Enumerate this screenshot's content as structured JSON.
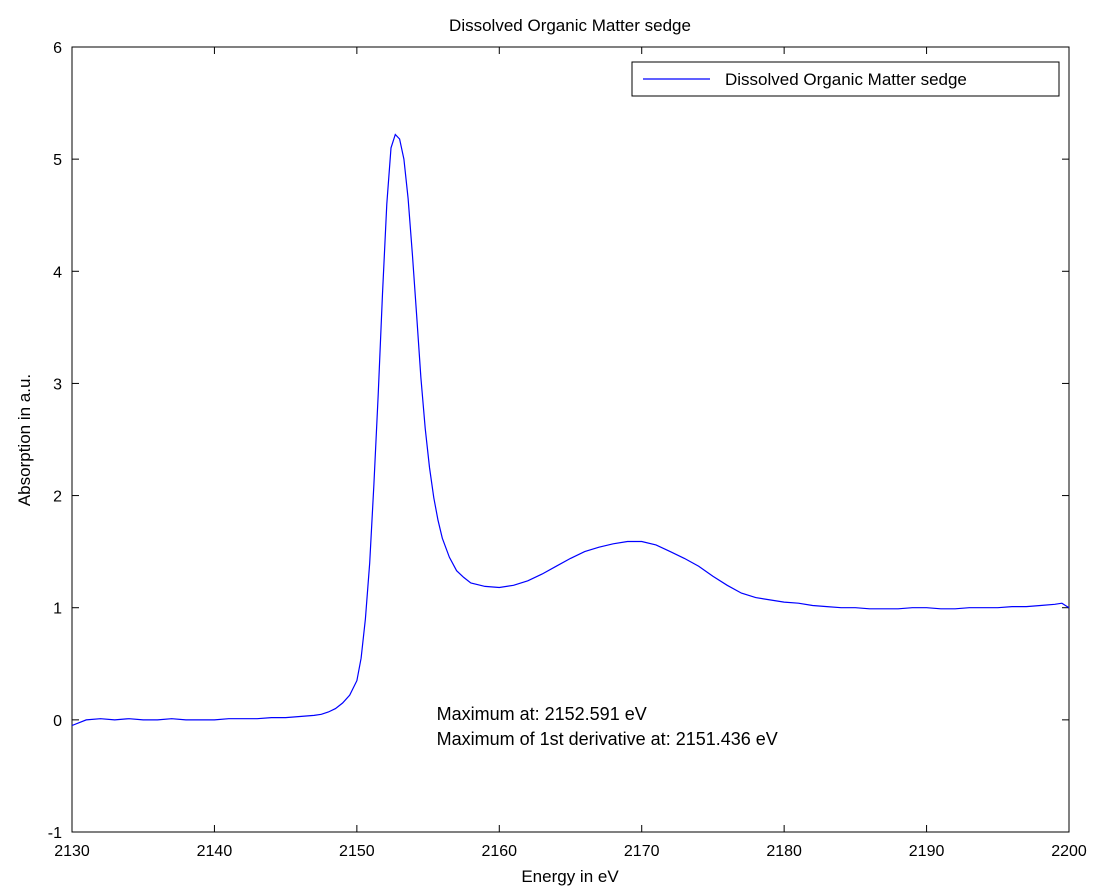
{
  "chart_data": {
    "type": "line",
    "title": "Dissolved Organic Matter sedge",
    "xlabel": "Energy in eV",
    "ylabel": "Absorption in a.u.",
    "xlim": [
      2130,
      2200
    ],
    "ylim": [
      -1,
      6
    ],
    "xticks": [
      2130,
      2140,
      2150,
      2160,
      2170,
      2180,
      2190,
      2200
    ],
    "yticks": [
      -1,
      0,
      1,
      2,
      3,
      4,
      5,
      6
    ],
    "grid": false,
    "legend_position": "top-right",
    "series": [
      {
        "name": "Dissolved Organic Matter sedge",
        "color": "#0000ff",
        "x": [
          2130,
          2131,
          2132,
          2133,
          2134,
          2135,
          2136,
          2137,
          2138,
          2139,
          2140,
          2141,
          2142,
          2143,
          2144,
          2145,
          2146,
          2147,
          2147.5,
          2148,
          2148.5,
          2149,
          2149.5,
          2150,
          2150.3,
          2150.6,
          2150.9,
          2151.2,
          2151.5,
          2151.8,
          2152.1,
          2152.4,
          2152.7,
          2153,
          2153.3,
          2153.6,
          2153.9,
          2154.2,
          2154.5,
          2154.8,
          2155.1,
          2155.4,
          2155.7,
          2156,
          2156.5,
          2157,
          2157.5,
          2158,
          2159,
          2160,
          2161,
          2162,
          2163,
          2164,
          2165,
          2166,
          2167,
          2168,
          2169,
          2170,
          2171,
          2172,
          2173,
          2174,
          2175,
          2176,
          2177,
          2178,
          2179,
          2180,
          2181,
          2182,
          2183,
          2184,
          2185,
          2186,
          2187,
          2188,
          2189,
          2190,
          2191,
          2192,
          2193,
          2194,
          2195,
          2196,
          2197,
          2198,
          2199,
          2199.5,
          2200
        ],
        "y": [
          -0.05,
          0.0,
          0.01,
          0.0,
          0.01,
          0.0,
          0.0,
          0.01,
          0.0,
          0.0,
          0.0,
          0.01,
          0.01,
          0.01,
          0.02,
          0.02,
          0.03,
          0.04,
          0.05,
          0.07,
          0.1,
          0.15,
          0.22,
          0.35,
          0.55,
          0.9,
          1.4,
          2.1,
          2.9,
          3.8,
          4.6,
          5.1,
          5.22,
          5.18,
          5.0,
          4.65,
          4.15,
          3.6,
          3.05,
          2.6,
          2.25,
          1.98,
          1.78,
          1.62,
          1.45,
          1.33,
          1.27,
          1.22,
          1.19,
          1.18,
          1.2,
          1.24,
          1.3,
          1.37,
          1.44,
          1.5,
          1.54,
          1.57,
          1.59,
          1.59,
          1.56,
          1.5,
          1.44,
          1.37,
          1.28,
          1.2,
          1.13,
          1.09,
          1.07,
          1.05,
          1.04,
          1.02,
          1.01,
          1.0,
          1.0,
          0.99,
          0.99,
          0.99,
          1.0,
          1.0,
          0.99,
          0.99,
          1.0,
          1.0,
          1.0,
          1.01,
          1.01,
          1.02,
          1.03,
          1.04,
          1.0
        ]
      }
    ],
    "annotations": [
      "Maximum at: 2152.591 eV",
      "Maximum of 1st derivative at: 2151.436 eV"
    ],
    "annotation_anchor": {
      "x": 2155.6,
      "y": 0.0
    }
  }
}
